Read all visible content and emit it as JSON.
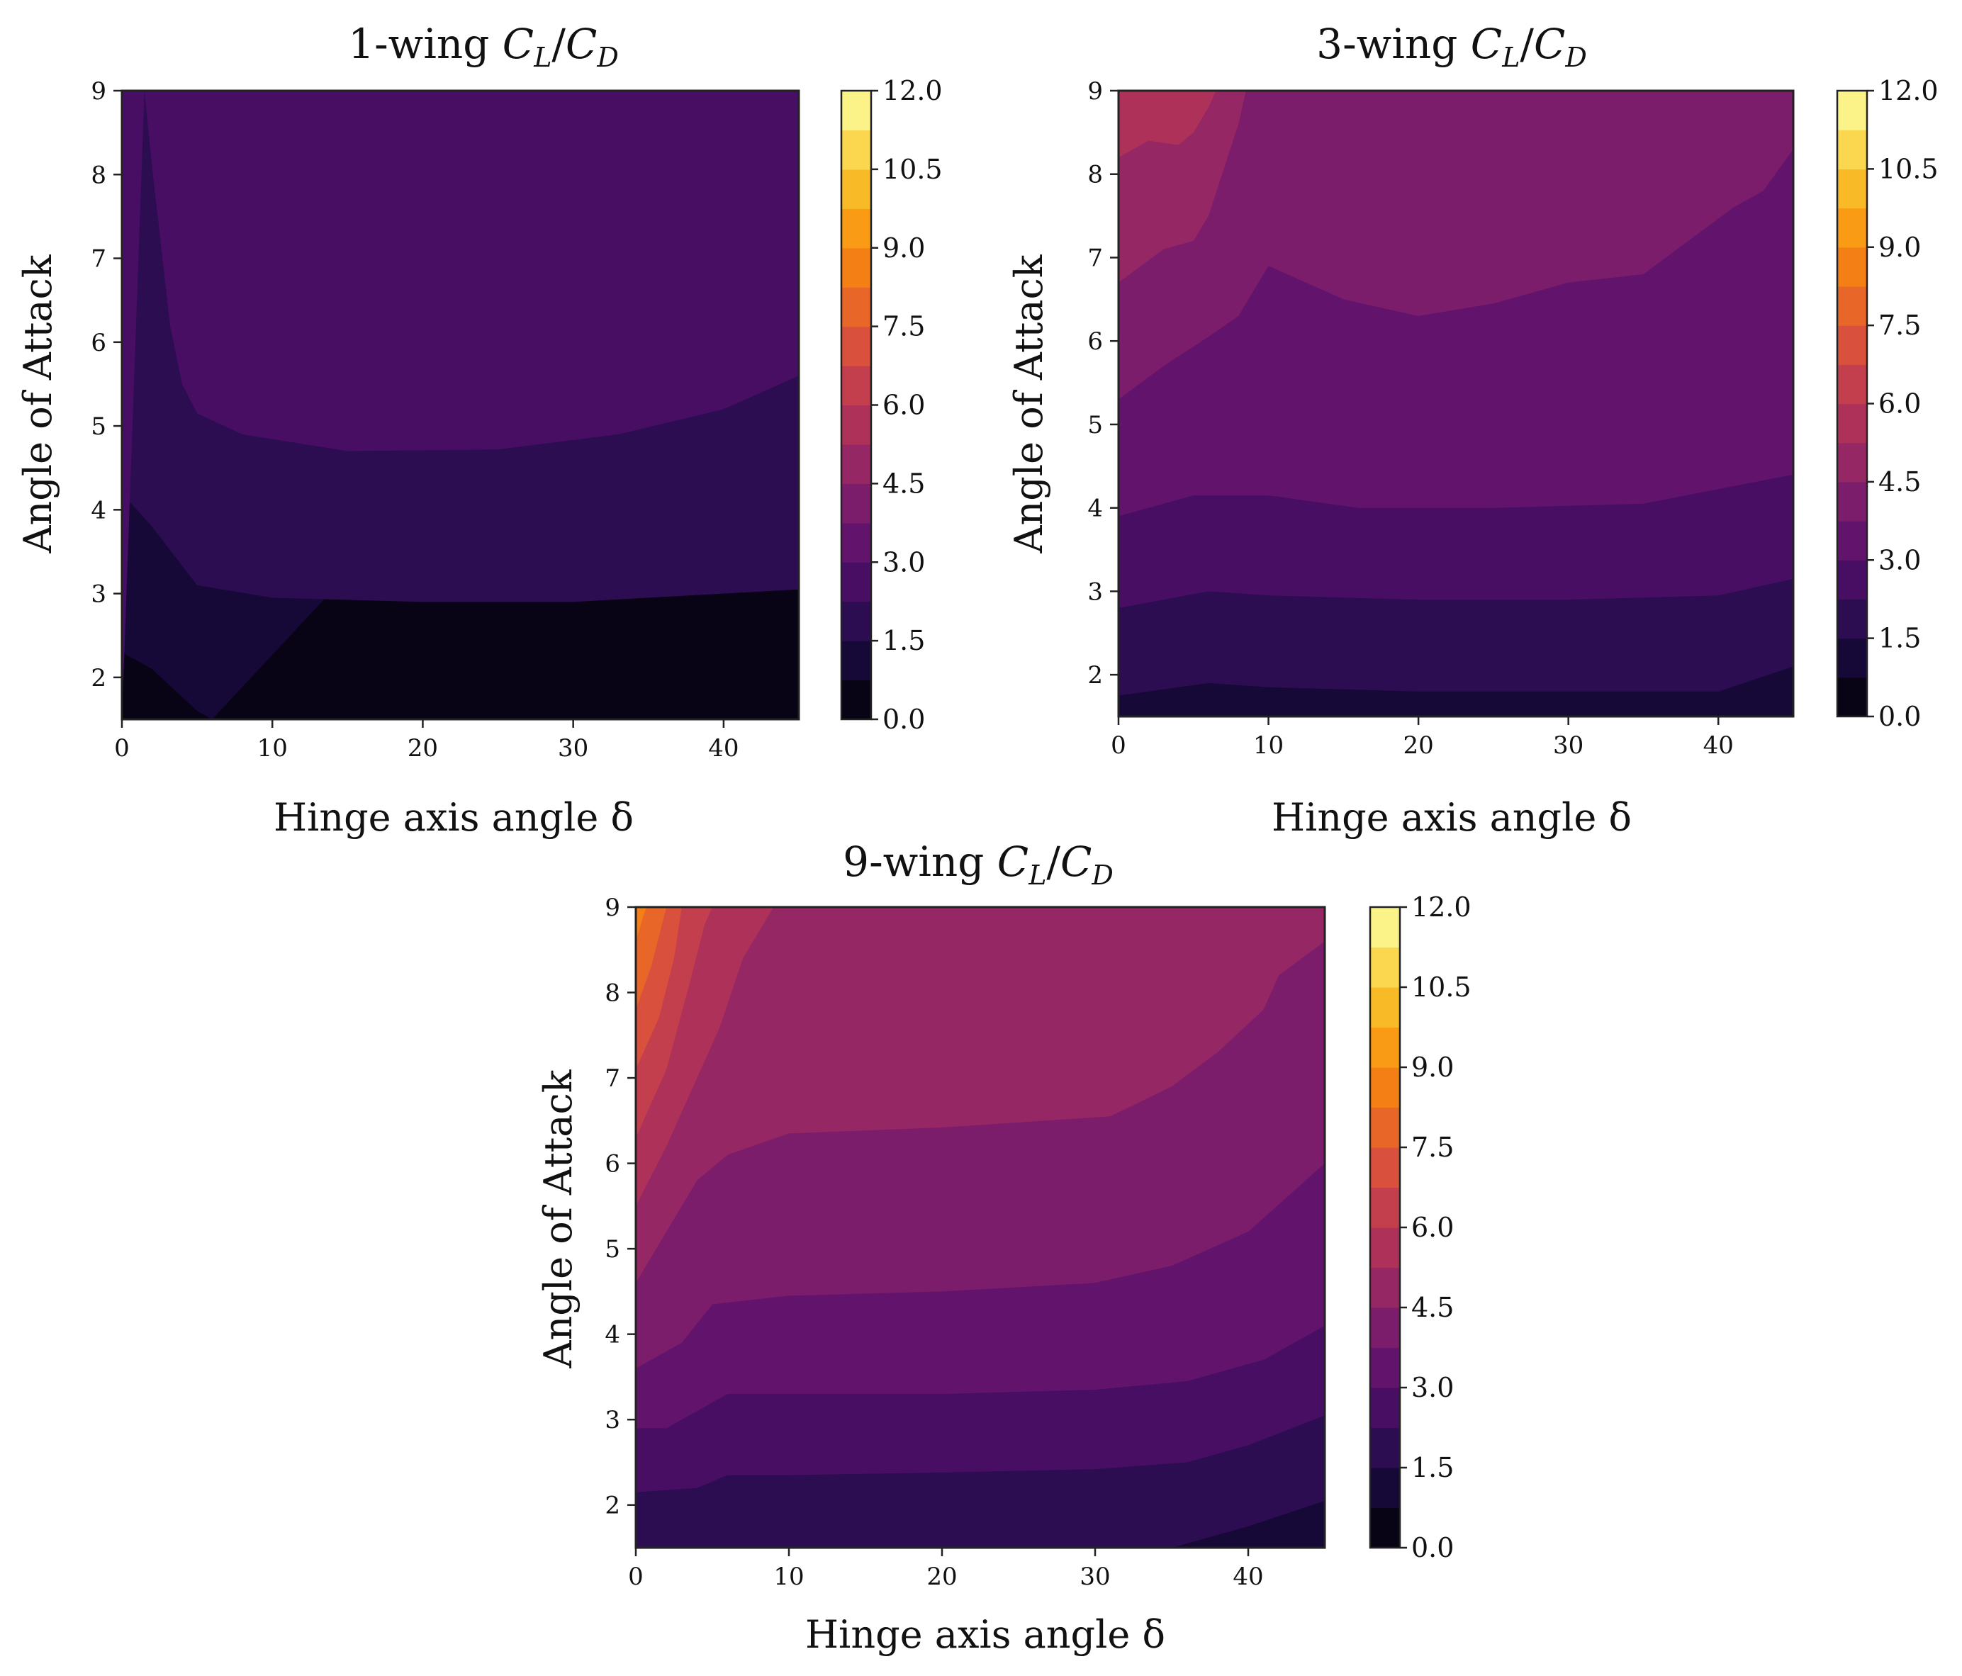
{
  "colors": {
    "colormap": "inferno",
    "background": "#ffffff",
    "axis": "#222222"
  },
  "chart_data": [
    {
      "type": "contour",
      "title": "1-wing C_L/C_D",
      "title_prefix": "1-wing ",
      "title_num": "C",
      "title_num_sub": "L",
      "title_den": "C",
      "title_den_sub": "D",
      "xlabel": "Hinge axis angle δ",
      "ylabel": "Angle of Attack",
      "xlim": [
        0,
        45
      ],
      "ylim": [
        1.5,
        9
      ],
      "xticks": [
        0,
        10,
        20,
        30,
        40
      ],
      "yticks": [
        2,
        3,
        4,
        5,
        6,
        7,
        8,
        9
      ],
      "levels_step": 0.75,
      "colorbar_range": [
        0,
        12
      ],
      "colorbar_ticks": [
        "0.0",
        "1.5",
        "3.0",
        "4.5",
        "6.0",
        "7.5",
        "9.0",
        "10.5",
        "12.0"
      ],
      "contours": [
        {
          "level": 0.75,
          "points": [
            [
              0,
              2.3
            ],
            [
              2,
              2.1
            ],
            [
              5,
              1.6
            ],
            [
              6,
              1.5
            ]
          ]
        },
        {
          "level": 1.5,
          "points": [
            [
              0,
              4.2
            ],
            [
              2,
              3.8
            ],
            [
              5,
              3.1
            ],
            [
              10,
              2.95
            ],
            [
              20,
              2.9
            ],
            [
              30,
              2.9
            ],
            [
              40,
              3.0
            ],
            [
              45,
              3.05
            ]
          ]
        },
        {
          "level": 2.25,
          "points": [
            [
              1.5,
              9
            ],
            [
              2,
              8.1
            ],
            [
              2.7,
              7
            ],
            [
              3.2,
              6.2
            ],
            [
              4,
              5.5
            ],
            [
              5,
              5.15
            ],
            [
              8,
              4.9
            ],
            [
              15,
              4.7
            ],
            [
              25,
              4.72
            ],
            [
              33,
              4.9
            ],
            [
              40,
              5.2
            ],
            [
              45,
              5.6
            ]
          ]
        }
      ]
    },
    {
      "type": "contour",
      "title": "3-wing C_L/C_D",
      "title_prefix": "3-wing ",
      "title_num": "C",
      "title_num_sub": "L",
      "title_den": "C",
      "title_den_sub": "D",
      "xlabel": "Hinge axis angle δ",
      "ylabel": "Angle of Attack",
      "xlim": [
        0,
        45
      ],
      "ylim": [
        1.5,
        9
      ],
      "xticks": [
        0,
        10,
        20,
        30,
        40
      ],
      "yticks": [
        2,
        3,
        4,
        5,
        6,
        7,
        8,
        9
      ],
      "levels_step": 0.75,
      "colorbar_range": [
        0,
        12
      ],
      "colorbar_ticks": [
        "0.0",
        "1.5",
        "3.0",
        "4.5",
        "6.0",
        "7.5",
        "9.0",
        "10.5",
        "12.0"
      ],
      "contours": [
        {
          "level": 1.5,
          "points": [
            [
              0,
              1.75
            ],
            [
              6,
              1.9
            ],
            [
              10,
              1.85
            ],
            [
              20,
              1.8
            ],
            [
              30,
              1.8
            ],
            [
              40,
              1.8
            ],
            [
              45,
              2.1
            ]
          ]
        },
        {
          "level": 2.25,
          "points": [
            [
              0,
              2.8
            ],
            [
              6,
              3.0
            ],
            [
              10,
              2.95
            ],
            [
              20,
              2.9
            ],
            [
              30,
              2.9
            ],
            [
              40,
              2.95
            ],
            [
              45,
              3.15
            ]
          ]
        },
        {
          "level": 3.0,
          "points": [
            [
              0,
              3.9
            ],
            [
              5,
              4.15
            ],
            [
              10,
              4.15
            ],
            [
              16,
              4.0
            ],
            [
              25,
              4.0
            ],
            [
              35,
              4.05
            ],
            [
              45,
              4.4
            ]
          ]
        },
        {
          "level": 3.75,
          "points": [
            [
              0,
              5.3
            ],
            [
              3,
              5.7
            ],
            [
              6,
              6.05
            ],
            [
              8,
              6.3
            ],
            [
              10,
              6.9
            ],
            [
              15,
              6.5
            ],
            [
              20,
              6.3
            ],
            [
              25,
              6.45
            ],
            [
              30,
              6.7
            ],
            [
              35,
              6.8
            ],
            [
              38,
              7.2
            ],
            [
              41,
              7.6
            ],
            [
              43,
              7.8
            ],
            [
              45,
              8.3
            ]
          ]
        },
        {
          "level": 4.5,
          "points": [
            [
              0,
              6.7
            ],
            [
              3,
              7.1
            ],
            [
              5,
              7.2
            ],
            [
              6,
              7.5
            ],
            [
              8,
              8.6
            ],
            [
              8.5,
              9
            ]
          ]
        },
        {
          "level": 5.25,
          "points": [
            [
              0,
              8.2
            ],
            [
              2,
              8.4
            ],
            [
              4,
              8.35
            ],
            [
              5,
              8.5
            ],
            [
              6,
              8.8
            ],
            [
              6.5,
              9
            ]
          ]
        }
      ]
    },
    {
      "type": "contour",
      "title": "9-wing C_L/C_D",
      "title_prefix": "9-wing ",
      "title_num": "C",
      "title_num_sub": "L",
      "title_den": "C",
      "title_den_sub": "D",
      "xlabel": "Hinge axis angle δ",
      "ylabel": "Angle of Attack",
      "xlim": [
        0,
        45
      ],
      "ylim": [
        1.5,
        9
      ],
      "xticks": [
        0,
        10,
        20,
        30,
        40
      ],
      "yticks": [
        2,
        3,
        4,
        5,
        6,
        7,
        8,
        9
      ],
      "levels_step": 0.75,
      "colorbar_range": [
        0,
        12
      ],
      "colorbar_ticks": [
        "0.0",
        "1.5",
        "3.0",
        "4.5",
        "6.0",
        "7.5",
        "9.0",
        "10.5",
        "12.0"
      ],
      "contours": [
        {
          "level": 1.5,
          "points": [
            [
              35,
              1.5
            ],
            [
              40,
              1.75
            ],
            [
              45,
              2.05
            ]
          ]
        },
        {
          "level": 2.25,
          "points": [
            [
              0,
              2.15
            ],
            [
              4,
              2.2
            ],
            [
              6,
              2.35
            ],
            [
              10,
              2.35
            ],
            [
              20,
              2.38
            ],
            [
              30,
              2.42
            ],
            [
              36,
              2.5
            ],
            [
              40,
              2.7
            ],
            [
              45,
              3.05
            ]
          ]
        },
        {
          "level": 3.0,
          "points": [
            [
              0,
              2.9
            ],
            [
              2,
              2.9
            ],
            [
              4,
              3.1
            ],
            [
              6,
              3.3
            ],
            [
              10,
              3.3
            ],
            [
              20,
              3.3
            ],
            [
              30,
              3.35
            ],
            [
              36,
              3.45
            ],
            [
              41,
              3.7
            ],
            [
              45,
              4.1
            ]
          ]
        },
        {
          "level": 3.75,
          "points": [
            [
              0,
              3.6
            ],
            [
              3,
              3.9
            ],
            [
              5,
              4.35
            ],
            [
              10,
              4.45
            ],
            [
              20,
              4.5
            ],
            [
              30,
              4.6
            ],
            [
              35,
              4.8
            ],
            [
              40,
              5.2
            ],
            [
              45,
              6.0
            ]
          ]
        },
        {
          "level": 4.5,
          "points": [
            [
              0,
              4.6
            ],
            [
              2,
              5.2
            ],
            [
              4,
              5.8
            ],
            [
              6,
              6.1
            ],
            [
              10,
              6.35
            ],
            [
              20,
              6.42
            ],
            [
              31,
              6.55
            ],
            [
              35,
              6.9
            ],
            [
              38,
              7.3
            ],
            [
              41,
              7.8
            ],
            [
              42,
              8.2
            ],
            [
              45,
              8.6
            ]
          ]
        },
        {
          "level": 5.25,
          "points": [
            [
              0,
              5.5
            ],
            [
              2,
              6.2
            ],
            [
              4,
              7.0
            ],
            [
              5.5,
              7.6
            ],
            [
              7,
              8.4
            ],
            [
              9,
              9
            ]
          ]
        },
        {
          "level": 6.0,
          "points": [
            [
              0,
              6.3
            ],
            [
              2,
              7.1
            ],
            [
              3.5,
              8.1
            ],
            [
              4.5,
              8.8
            ],
            [
              5,
              9
            ]
          ]
        },
        {
          "level": 6.75,
          "points": [
            [
              0,
              7.1
            ],
            [
              1.5,
              7.7
            ],
            [
              2.5,
              8.4
            ],
            [
              3,
              9
            ]
          ]
        },
        {
          "level": 7.5,
          "points": [
            [
              0,
              7.8
            ],
            [
              1,
              8.3
            ],
            [
              2,
              9
            ]
          ]
        },
        {
          "level": 8.25,
          "points": [
            [
              0,
              8.6
            ],
            [
              0.5,
              8.9
            ],
            [
              0.7,
              9
            ]
          ]
        }
      ]
    }
  ]
}
